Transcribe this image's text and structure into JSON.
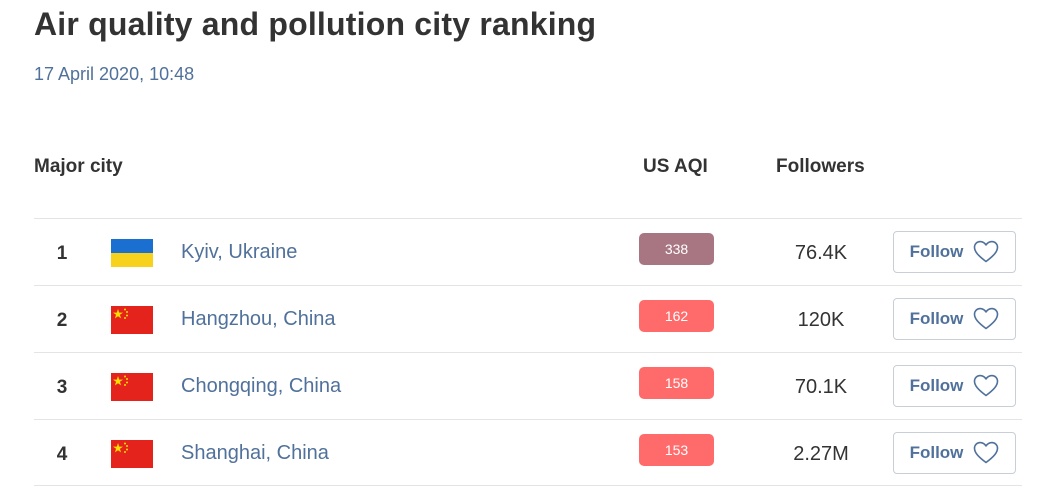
{
  "header": {
    "title": "Air quality and pollution city ranking",
    "timestamp": "17 April 2020, 10:48"
  },
  "table": {
    "columns": {
      "city": "Major city",
      "aqi": "US AQI",
      "followers": "Followers"
    },
    "follow_label": "Follow",
    "rows": [
      {
        "rank": "1",
        "city": "Kyiv, Ukraine",
        "aqi": "338",
        "aqi_color": "#a87682",
        "followers": "76.4K",
        "flag": "ukraine-flag-icon"
      },
      {
        "rank": "2",
        "city": "Hangzhou, China",
        "aqi": "162",
        "aqi_color": "#ff6b6b",
        "followers": "120K",
        "flag": "china-flag-icon"
      },
      {
        "rank": "3",
        "city": "Chongqing, China",
        "aqi": "158",
        "aqi_color": "#ff6b6b",
        "followers": "70.1K",
        "flag": "china-flag-icon"
      },
      {
        "rank": "4",
        "city": "Shanghai, China",
        "aqi": "153",
        "aqi_color": "#ff6b6b",
        "followers": "2.27M",
        "flag": "china-flag-icon"
      }
    ]
  },
  "colors": {
    "accent_text": "#50719b",
    "divider": "#e4e4e4"
  }
}
